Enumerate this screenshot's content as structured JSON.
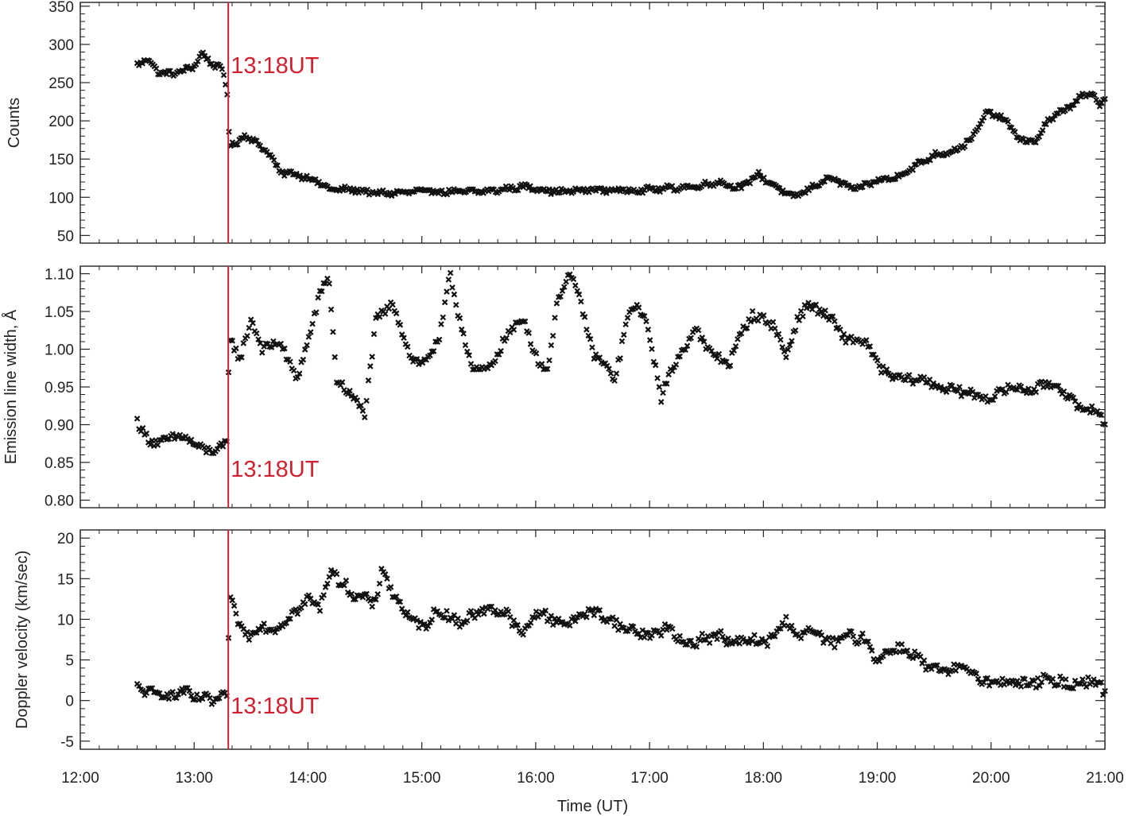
{
  "chart_data": [
    {
      "type": "scatter",
      "ylabel": "Counts",
      "xlim": [
        12.0,
        21.0
      ],
      "ylim": [
        40,
        355
      ],
      "yticks": [
        50,
        100,
        150,
        200,
        250,
        300,
        350
      ],
      "xticks": [
        "12:00",
        "13:00",
        "14:00",
        "15:00",
        "16:00",
        "17:00",
        "18:00",
        "19:00",
        "20:00",
        "21:00"
      ],
      "event": {
        "time": 13.3,
        "label": "13:18UT",
        "color": "#d01f2e"
      },
      "control": [
        [
          12.5,
          275
        ],
        [
          12.6,
          280
        ],
        [
          12.7,
          262
        ],
        [
          12.8,
          262
        ],
        [
          12.9,
          265
        ],
        [
          13.0,
          272
        ],
        [
          13.07,
          288
        ],
        [
          13.15,
          276
        ],
        [
          13.25,
          266
        ],
        [
          13.29,
          240
        ],
        [
          13.31,
          170
        ],
        [
          13.38,
          170
        ],
        [
          13.45,
          183
        ],
        [
          13.55,
          170
        ],
        [
          13.65,
          160
        ],
        [
          13.75,
          133
        ],
        [
          13.9,
          130
        ],
        [
          14.05,
          123
        ],
        [
          14.2,
          110
        ],
        [
          14.4,
          110
        ],
        [
          14.6,
          105
        ],
        [
          14.8,
          106
        ],
        [
          15.0,
          108
        ],
        [
          15.3,
          107
        ],
        [
          15.6,
          108
        ],
        [
          15.9,
          114
        ],
        [
          16.2,
          107
        ],
        [
          16.5,
          110
        ],
        [
          16.8,
          109
        ],
        [
          17.1,
          111
        ],
        [
          17.4,
          114
        ],
        [
          17.6,
          120
        ],
        [
          17.8,
          112
        ],
        [
          17.95,
          130
        ],
        [
          18.1,
          115
        ],
        [
          18.25,
          100
        ],
        [
          18.4,
          110
        ],
        [
          18.5,
          120
        ],
        [
          18.6,
          125
        ],
        [
          18.8,
          110
        ],
        [
          19.0,
          122
        ],
        [
          19.15,
          125
        ],
        [
          19.3,
          138
        ],
        [
          19.5,
          155
        ],
        [
          19.7,
          162
        ],
        [
          19.85,
          180
        ],
        [
          19.95,
          210
        ],
        [
          20.1,
          205
        ],
        [
          20.2,
          185
        ],
        [
          20.3,
          172
        ],
        [
          20.4,
          175
        ],
        [
          20.5,
          200
        ],
        [
          20.65,
          215
        ],
        [
          20.8,
          232
        ],
        [
          20.9,
          235
        ],
        [
          20.95,
          220
        ],
        [
          21.0,
          232
        ]
      ],
      "amp": 3,
      "n": 560,
      "wiggle": 0.1
    },
    {
      "type": "scatter",
      "ylabel": "Emission line width, Å",
      "xlim": [
        12.0,
        21.0
      ],
      "ylim": [
        0.79,
        1.11
      ],
      "yticks": [
        0.8,
        0.85,
        0.9,
        0.95,
        1.0,
        1.05,
        1.1
      ],
      "xticks": [
        "12:00",
        "13:00",
        "14:00",
        "15:00",
        "16:00",
        "17:00",
        "18:00",
        "19:00",
        "20:00",
        "21:00"
      ],
      "event": {
        "time": 13.3,
        "label": "13:18UT",
        "color": "#d01f2e"
      },
      "control": [
        [
          12.5,
          0.905
        ],
        [
          12.55,
          0.89
        ],
        [
          12.62,
          0.878
        ],
        [
          12.7,
          0.876
        ],
        [
          12.8,
          0.882
        ],
        [
          12.9,
          0.885
        ],
        [
          13.0,
          0.874
        ],
        [
          13.1,
          0.866
        ],
        [
          13.2,
          0.866
        ],
        [
          13.29,
          0.875
        ],
        [
          13.31,
          1.02
        ],
        [
          13.4,
          0.985
        ],
        [
          13.5,
          1.04
        ],
        [
          13.6,
          1.0
        ],
        [
          13.75,
          1.01
        ],
        [
          13.9,
          0.96
        ],
        [
          14.0,
          1.01
        ],
        [
          14.1,
          1.07
        ],
        [
          14.18,
          1.1
        ],
        [
          14.25,
          0.96
        ],
        [
          14.4,
          0.935
        ],
        [
          14.5,
          0.915
        ],
        [
          14.6,
          1.04
        ],
        [
          14.75,
          1.06
        ],
        [
          14.9,
          0.99
        ],
        [
          15.0,
          0.98
        ],
        [
          15.15,
          1.01
        ],
        [
          15.25,
          1.1
        ],
        [
          15.3,
          1.06
        ],
        [
          15.45,
          0.97
        ],
        [
          15.6,
          0.975
        ],
        [
          15.75,
          1.02
        ],
        [
          15.9,
          1.04
        ],
        [
          16.0,
          0.99
        ],
        [
          16.1,
          0.97
        ],
        [
          16.2,
          1.07
        ],
        [
          16.3,
          1.1
        ],
        [
          16.4,
          1.06
        ],
        [
          16.5,
          0.995
        ],
        [
          16.6,
          0.98
        ],
        [
          16.7,
          0.96
        ],
        [
          16.8,
          1.04
        ],
        [
          16.9,
          1.06
        ],
        [
          17.0,
          1.02
        ],
        [
          17.1,
          0.935
        ],
        [
          17.2,
          0.975
        ],
        [
          17.3,
          1.0
        ],
        [
          17.4,
          1.03
        ],
        [
          17.5,
          1.0
        ],
        [
          17.6,
          0.99
        ],
        [
          17.7,
          0.98
        ],
        [
          17.8,
          1.02
        ],
        [
          17.9,
          1.045
        ],
        [
          18.0,
          1.04
        ],
        [
          18.1,
          1.03
        ],
        [
          18.2,
          0.99
        ],
        [
          18.3,
          1.04
        ],
        [
          18.4,
          1.06
        ],
        [
          18.5,
          1.05
        ],
        [
          18.6,
          1.04
        ],
        [
          18.7,
          1.015
        ],
        [
          18.9,
          1.01
        ],
        [
          19.0,
          0.98
        ],
        [
          19.1,
          0.965
        ],
        [
          19.25,
          0.96
        ],
        [
          19.4,
          0.96
        ],
        [
          19.55,
          0.95
        ],
        [
          19.7,
          0.945
        ],
        [
          19.85,
          0.94
        ],
        [
          20.0,
          0.935
        ],
        [
          20.1,
          0.945
        ],
        [
          20.2,
          0.95
        ],
        [
          20.35,
          0.945
        ],
        [
          20.5,
          0.955
        ],
        [
          20.6,
          0.95
        ],
        [
          20.7,
          0.935
        ],
        [
          20.8,
          0.915
        ],
        [
          20.9,
          0.925
        ],
        [
          21.0,
          0.9
        ]
      ],
      "amp": 0.006,
      "n": 520,
      "wiggle": 0.0
    },
    {
      "type": "scatter",
      "ylabel": "Doppler velocity (km/sec)",
      "xlabel": "Time (UT)",
      "xlim": [
        12.0,
        21.0
      ],
      "ylim": [
        -6,
        21
      ],
      "yticks": [
        -5,
        0,
        5,
        10,
        15,
        20
      ],
      "xticks": [
        "12:00",
        "13:00",
        "14:00",
        "15:00",
        "16:00",
        "17:00",
        "18:00",
        "19:00",
        "20:00",
        "21:00"
      ],
      "event": {
        "time": 13.3,
        "label": "13:18UT",
        "color": "#d01f2e"
      },
      "control": [
        [
          12.5,
          1.8
        ],
        [
          12.6,
          0.8
        ],
        [
          12.7,
          1.0
        ],
        [
          12.8,
          0.5
        ],
        [
          12.9,
          1.2
        ],
        [
          13.0,
          0.3
        ],
        [
          13.1,
          0.2
        ],
        [
          13.2,
          0.0
        ],
        [
          13.29,
          0.5
        ],
        [
          13.31,
          13.0
        ],
        [
          13.4,
          9.0
        ],
        [
          13.5,
          8.0
        ],
        [
          13.6,
          9.5
        ],
        [
          13.7,
          8.5
        ],
        [
          13.8,
          10.0
        ],
        [
          13.9,
          11.0
        ],
        [
          14.0,
          12.5
        ],
        [
          14.1,
          11.5
        ],
        [
          14.2,
          16.0
        ],
        [
          14.3,
          14.5
        ],
        [
          14.4,
          13.0
        ],
        [
          14.5,
          12.5
        ],
        [
          14.6,
          12.0
        ],
        [
          14.65,
          16.5
        ],
        [
          14.75,
          13.0
        ],
        [
          14.9,
          10.0
        ],
        [
          15.0,
          9.0
        ],
        [
          15.1,
          10.5
        ],
        [
          15.2,
          11.0
        ],
        [
          15.3,
          9.5
        ],
        [
          15.45,
          10.5
        ],
        [
          15.6,
          11.5
        ],
        [
          15.75,
          10.5
        ],
        [
          15.9,
          8.0
        ],
        [
          16.0,
          11.0
        ],
        [
          16.15,
          10.0
        ],
        [
          16.3,
          9.5
        ],
        [
          16.45,
          11.0
        ],
        [
          16.6,
          10.5
        ],
        [
          16.75,
          9.0
        ],
        [
          16.9,
          8.5
        ],
        [
          17.0,
          8.0
        ],
        [
          17.15,
          9.0
        ],
        [
          17.3,
          7.0
        ],
        [
          17.45,
          7.5
        ],
        [
          17.6,
          8.0
        ],
        [
          17.75,
          7.0
        ],
        [
          17.9,
          7.5
        ],
        [
          18.0,
          7.0
        ],
        [
          18.1,
          8.0
        ],
        [
          18.2,
          10.0
        ],
        [
          18.3,
          8.0
        ],
        [
          18.45,
          8.5
        ],
        [
          18.6,
          7.0
        ],
        [
          18.75,
          8.0
        ],
        [
          18.9,
          7.5
        ],
        [
          19.0,
          5.0
        ],
        [
          19.15,
          6.5
        ],
        [
          19.3,
          6.0
        ],
        [
          19.45,
          4.0
        ],
        [
          19.6,
          3.5
        ],
        [
          19.75,
          4.0
        ],
        [
          19.9,
          3.0
        ],
        [
          20.0,
          2.0
        ],
        [
          20.15,
          2.5
        ],
        [
          20.3,
          2.0
        ],
        [
          20.5,
          2.5
        ],
        [
          20.7,
          2.0
        ],
        [
          20.85,
          2.5
        ],
        [
          20.95,
          2.0
        ],
        [
          21.0,
          1.0
        ]
      ],
      "amp": 0.6,
      "n": 520,
      "wiggle": 0.8
    }
  ]
}
